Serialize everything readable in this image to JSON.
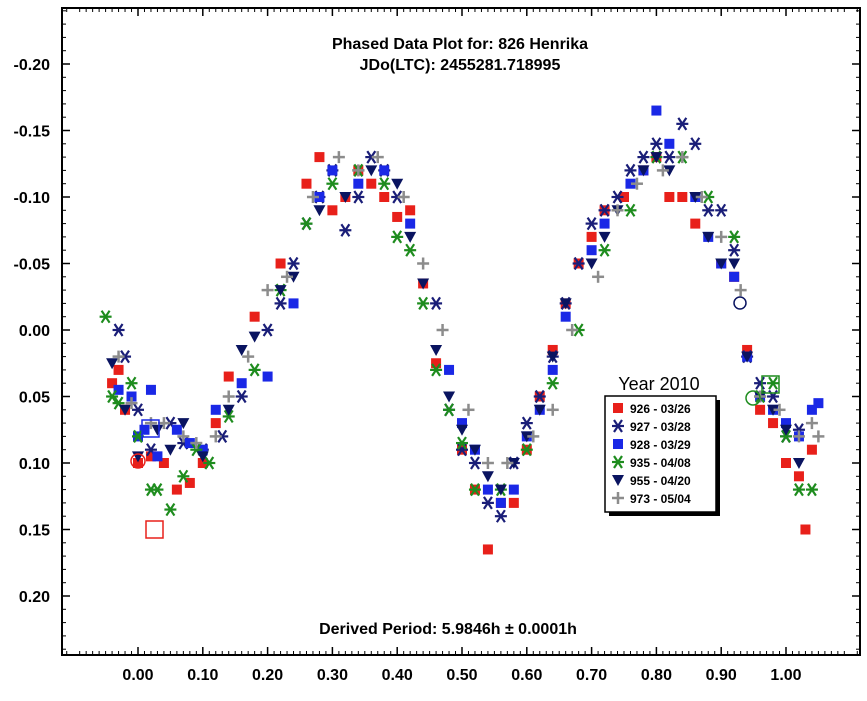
{
  "chart_data": {
    "type": "scatter",
    "title": "Phased Data Plot for: 826 Henrika",
    "subtitle": "JDo(LTC): 2455281.718995",
    "annotation": "Derived Period: 5.9846h ± 0.0001h",
    "xlabel": "",
    "ylabel": "",
    "xlim": [
      -0.12,
      1.12
    ],
    "ylim": [
      0.245,
      -0.245
    ],
    "y_inverted": true,
    "grid": false,
    "legend_placement": "right-center",
    "x_ticks": [
      "0.00",
      "0.10",
      "0.20",
      "0.30",
      "0.40",
      "0.50",
      "0.60",
      "0.70",
      "0.80",
      "0.90",
      "1.00"
    ],
    "y_ticks": [
      "-0.20",
      "-0.15",
      "-0.10",
      "-0.05",
      "0.00",
      "0.05",
      "0.10",
      "0.15",
      "0.20"
    ],
    "legend_title": "Year 2010",
    "series": [
      {
        "name": "926 - 03/26",
        "marker": "square",
        "color": "#e8201a",
        "x": [
          -0.04,
          -0.03,
          -0.02,
          0.0,
          0.02,
          0.04,
          0.06,
          0.08,
          0.1,
          0.12,
          0.14,
          0.18,
          0.22,
          0.26,
          0.28,
          0.3,
          0.32,
          0.34,
          0.36,
          0.38,
          0.4,
          0.42,
          0.44,
          0.46,
          0.5,
          0.52,
          0.54,
          0.56,
          0.58,
          0.6,
          0.62,
          0.64,
          0.66,
          0.68,
          0.7,
          0.72,
          0.75,
          0.78,
          0.8,
          0.82,
          0.84,
          0.86,
          0.9,
          0.92,
          0.94,
          0.96,
          0.98,
          1.0,
          1.02,
          1.03,
          1.04
        ],
        "y": [
          0.04,
          0.03,
          0.06,
          0.1,
          0.095,
          0.1,
          0.12,
          0.115,
          0.1,
          0.07,
          0.035,
          -0.01,
          -0.05,
          -0.11,
          -0.13,
          -0.09,
          -0.1,
          -0.12,
          -0.11,
          -0.1,
          -0.085,
          -0.09,
          -0.035,
          0.025,
          0.09,
          0.12,
          0.165,
          0.13,
          0.13,
          0.09,
          0.05,
          0.015,
          -0.02,
          -0.05,
          -0.07,
          -0.09,
          -0.1,
          -0.12,
          -0.13,
          -0.1,
          -0.1,
          -0.08,
          -0.05,
          -0.04,
          0.015,
          0.06,
          0.07,
          0.1,
          0.11,
          0.15,
          0.09
        ]
      },
      {
        "name": "927 - 03/28",
        "marker": "asterisk",
        "color": "#1a1e78",
        "x": [
          -0.03,
          -0.02,
          0.0,
          0.02,
          0.05,
          0.07,
          0.1,
          0.13,
          0.16,
          0.2,
          0.22,
          0.24,
          0.26,
          0.28,
          0.3,
          0.32,
          0.34,
          0.36,
          0.38,
          0.4,
          0.46,
          0.48,
          0.5,
          0.52,
          0.54,
          0.56,
          0.58,
          0.6,
          0.62,
          0.64,
          0.66,
          0.68,
          0.7,
          0.72,
          0.74,
          0.76,
          0.78,
          0.8,
          0.82,
          0.84,
          0.86,
          0.88,
          0.9,
          0.92,
          0.94,
          0.96,
          0.98,
          1.0,
          1.02
        ],
        "y": [
          0.0,
          0.02,
          0.06,
          0.09,
          0.07,
          0.085,
          0.09,
          0.08,
          0.05,
          0.0,
          -0.02,
          -0.05,
          -0.08,
          -0.1,
          -0.12,
          -0.075,
          -0.1,
          -0.13,
          -0.12,
          -0.1,
          -0.02,
          0.06,
          0.09,
          0.1,
          0.13,
          0.14,
          0.1,
          0.07,
          0.05,
          0.02,
          -0.02,
          -0.05,
          -0.08,
          -0.09,
          -0.1,
          -0.12,
          -0.13,
          -0.14,
          -0.13,
          -0.155,
          -0.14,
          -0.09,
          -0.09,
          -0.06,
          0.02,
          0.04,
          0.05,
          0.08,
          0.075
        ]
      },
      {
        "name": "928 - 03/29",
        "marker": "square",
        "color": "#1a28e6",
        "x": [
          -0.03,
          -0.01,
          0.0,
          0.01,
          0.02,
          0.03,
          0.06,
          0.08,
          0.1,
          0.12,
          0.16,
          0.2,
          0.24,
          0.28,
          0.3,
          0.34,
          0.38,
          0.42,
          0.48,
          0.5,
          0.52,
          0.54,
          0.56,
          0.58,
          0.6,
          0.62,
          0.64,
          0.66,
          0.7,
          0.72,
          0.76,
          0.78,
          0.8,
          0.82,
          0.86,
          0.88,
          0.9,
          0.92,
          0.94,
          0.96,
          0.98,
          1.0,
          1.02,
          1.04,
          1.05
        ],
        "y": [
          0.045,
          0.05,
          0.08,
          0.075,
          0.045,
          0.095,
          0.075,
          0.085,
          0.09,
          0.06,
          0.04,
          0.035,
          -0.02,
          -0.1,
          -0.12,
          -0.11,
          -0.12,
          -0.08,
          0.03,
          0.07,
          0.09,
          0.12,
          0.13,
          0.12,
          0.08,
          0.06,
          0.03,
          -0.01,
          -0.06,
          -0.08,
          -0.11,
          -0.12,
          -0.165,
          -0.14,
          -0.1,
          -0.07,
          -0.05,
          -0.04,
          0.02,
          0.05,
          0.06,
          0.07,
          0.08,
          0.06,
          0.055
        ]
      },
      {
        "name": "935 - 04/08",
        "marker": "asterisk",
        "color": "#1e8c1e",
        "x": [
          -0.05,
          -0.04,
          -0.03,
          -0.01,
          0.0,
          0.02,
          0.03,
          0.05,
          0.07,
          0.09,
          0.11,
          0.14,
          0.18,
          0.22,
          0.26,
          0.3,
          0.34,
          0.38,
          0.4,
          0.42,
          0.44,
          0.46,
          0.48,
          0.5,
          0.52,
          0.56,
          0.6,
          0.64,
          0.68,
          0.72,
          0.76,
          0.8,
          0.84,
          0.88,
          0.92,
          0.96,
          0.98,
          1.0,
          1.02,
          1.04
        ],
        "y": [
          -0.01,
          0.05,
          0.055,
          0.04,
          0.08,
          0.12,
          0.12,
          0.135,
          0.11,
          0.09,
          0.1,
          0.065,
          0.03,
          -0.03,
          -0.08,
          -0.11,
          -0.12,
          -0.11,
          -0.07,
          -0.06,
          -0.02,
          0.03,
          0.06,
          0.085,
          0.12,
          0.12,
          0.09,
          0.04,
          0.0,
          -0.06,
          -0.09,
          -0.13,
          -0.13,
          -0.1,
          -0.07,
          0.05,
          0.04,
          0.08,
          0.12,
          0.12
        ]
      },
      {
        "name": "955 - 04/20",
        "marker": "triangle-down",
        "color": "#0a1460",
        "x": [
          -0.04,
          -0.02,
          0.0,
          0.03,
          0.05,
          0.07,
          0.1,
          0.14,
          0.16,
          0.18,
          0.22,
          0.24,
          0.28,
          0.32,
          0.36,
          0.4,
          0.42,
          0.44,
          0.46,
          0.48,
          0.5,
          0.52,
          0.54,
          0.56,
          0.58,
          0.6,
          0.62,
          0.64,
          0.66,
          0.7,
          0.72,
          0.74,
          0.78,
          0.8,
          0.82,
          0.86,
          0.88,
          0.9,
          0.92,
          0.94,
          0.96,
          0.98,
          1.0,
          1.02
        ],
        "y": [
          0.025,
          0.06,
          0.095,
          0.075,
          0.09,
          0.07,
          0.095,
          0.06,
          0.015,
          0.005,
          -0.03,
          -0.04,
          -0.09,
          -0.1,
          -0.12,
          -0.11,
          -0.07,
          -0.035,
          0.015,
          0.05,
          0.075,
          0.09,
          0.11,
          0.12,
          0.1,
          0.08,
          0.06,
          0.02,
          -0.02,
          -0.05,
          -0.07,
          -0.09,
          -0.12,
          -0.13,
          -0.12,
          -0.1,
          -0.07,
          -0.05,
          -0.05,
          0.02,
          0.05,
          0.06,
          0.075,
          0.1
        ]
      },
      {
        "name": "973 - 05/04",
        "marker": "plus",
        "color": "#8c8c8c",
        "x": [
          -0.03,
          -0.01,
          0.02,
          0.04,
          0.07,
          0.09,
          0.12,
          0.14,
          0.17,
          0.2,
          0.23,
          0.27,
          0.31,
          0.34,
          0.37,
          0.41,
          0.44,
          0.47,
          0.51,
          0.54,
          0.57,
          0.61,
          0.64,
          0.67,
          0.71,
          0.74,
          0.77,
          0.81,
          0.84,
          0.87,
          0.9,
          0.93,
          0.96,
          0.99,
          1.02,
          1.04,
          1.05
        ],
        "y": [
          0.02,
          0.055,
          0.07,
          0.07,
          0.08,
          0.085,
          0.08,
          0.05,
          0.02,
          -0.03,
          -0.04,
          -0.1,
          -0.13,
          -0.12,
          -0.13,
          -0.1,
          -0.05,
          0.0,
          0.06,
          0.1,
          0.1,
          0.08,
          0.06,
          0.0,
          -0.04,
          -0.09,
          -0.11,
          -0.12,
          -0.13,
          -0.1,
          -0.07,
          -0.03,
          0.05,
          0.06,
          0.08,
          0.07,
          0.08
        ]
      }
    ]
  }
}
